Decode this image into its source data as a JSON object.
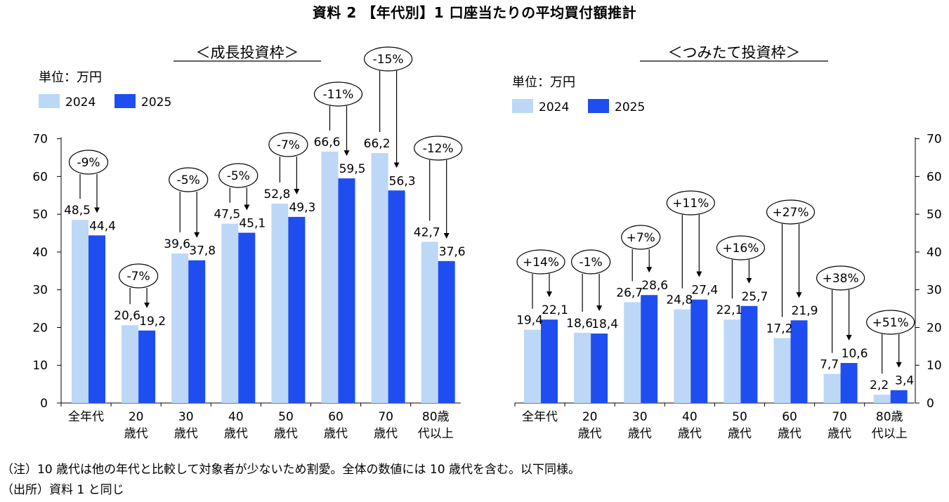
{
  "title": "資料 2 【年代別】1 口座当たりの平均買付額推計",
  "notes": [
    "（注）10 歳代は他の年代と比較して対象者が少ないため割愛。全体の数値には 10 歳代を含む。以下同様。",
    "（出所）資料 1 と同じ"
  ],
  "colors": {
    "series_2024": "#bdd7f7",
    "series_2025": "#1f4ef0"
  },
  "chart_data": [
    {
      "type": "bar",
      "title": "＜成長投資枠＞",
      "unit_label": "単位：万円",
      "y_axis_side": "left",
      "ylim": [
        0,
        70
      ],
      "yticks": [
        0,
        10,
        20,
        30,
        40,
        50,
        60,
        70
      ],
      "categories": [
        [
          "全年代"
        ],
        [
          "20",
          "歳代"
        ],
        [
          "30",
          "歳代"
        ],
        [
          "40",
          "歳代"
        ],
        [
          "50",
          "歳代"
        ],
        [
          "60",
          "歳代"
        ],
        [
          "70",
          "歳代"
        ],
        [
          "80歳",
          "代以上"
        ]
      ],
      "series": [
        {
          "name": "2024",
          "values": [
            48.5,
            20.6,
            39.6,
            47.5,
            52.8,
            66.6,
            66.2,
            42.7
          ],
          "labels": [
            "48,5",
            "20,6",
            "39,6",
            "47,5",
            "52,8",
            "66,6",
            "66,2",
            "42,7"
          ]
        },
        {
          "name": "2025",
          "values": [
            44.4,
            19.2,
            37.8,
            45.1,
            49.3,
            59.5,
            56.3,
            37.6
          ],
          "labels": [
            "44,4",
            "19,2",
            "37,8",
            "45,1",
            "49,3",
            "59,5",
            "56,3",
            "37,6"
          ]
        }
      ],
      "change_labels": [
        "-9%",
        "-7%",
        "-5%",
        "-5%",
        "-7%",
        "-11%",
        "-15%",
        "-12%"
      ],
      "legend": "top-left"
    },
    {
      "type": "bar",
      "title": "＜つみたて投資枠＞",
      "unit_label": "単位：万円",
      "y_axis_side": "right",
      "ylim": [
        0,
        70
      ],
      "yticks": [
        0,
        10,
        20,
        30,
        40,
        50,
        60,
        70
      ],
      "categories": [
        [
          "全年代"
        ],
        [
          "20",
          "歳代"
        ],
        [
          "30",
          "歳代"
        ],
        [
          "40",
          "歳代"
        ],
        [
          "50",
          "歳代"
        ],
        [
          "60",
          "歳代"
        ],
        [
          "70",
          "歳代"
        ],
        [
          "80歳",
          "代以上"
        ]
      ],
      "series": [
        {
          "name": "2024",
          "values": [
            19.4,
            18.6,
            26.7,
            24.8,
            22.1,
            17.2,
            7.7,
            2.2
          ],
          "labels": [
            "19,4",
            "18,6",
            "26,7",
            "24,8",
            "22,1",
            "17,2",
            "7,7",
            "2,2"
          ]
        },
        {
          "name": "2025",
          "values": [
            22.1,
            18.4,
            28.6,
            27.4,
            25.7,
            21.9,
            10.6,
            3.4
          ],
          "labels": [
            "22,1",
            "18,4",
            "28,6",
            "27,4",
            "25,7",
            "21,9",
            "10,6",
            "3,4"
          ]
        }
      ],
      "change_labels": [
        "+14%",
        "-1%",
        "+7%",
        "+11%",
        "+16%",
        "+27%",
        "+38%",
        "+51%"
      ],
      "legend": "top-left"
    }
  ]
}
